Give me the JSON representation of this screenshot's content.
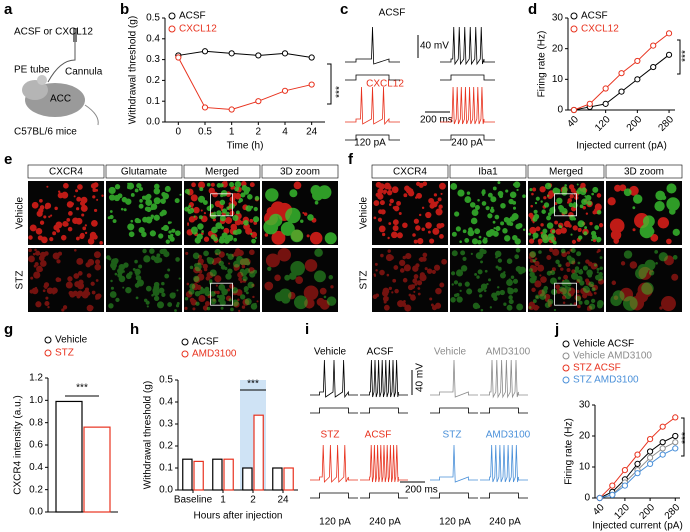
{
  "panel_labels": [
    "a",
    "b",
    "c",
    "d",
    "e",
    "f",
    "g",
    "h",
    "i",
    "j"
  ],
  "panel_a": {
    "infusion": "ACSF or CXCL12",
    "tube": "PE tube",
    "cannula": "Cannula",
    "region": "ACC",
    "mice": "C57BL/6 mice"
  },
  "panel_c": {
    "control": "ACSF",
    "treatment": "CXCL12",
    "voltage_scale": "40 mV",
    "time_scale": "200 ms",
    "currents": [
      "120 pA",
      "240 pA"
    ]
  },
  "panel_e": {
    "columns": [
      "CXCR4",
      "Glutamate",
      "Merged",
      "3D zoom"
    ],
    "rows": [
      "Vehicle",
      "STZ"
    ]
  },
  "panel_f": {
    "columns": [
      "CXCR4",
      "Iba1",
      "Merged",
      "3D zoom"
    ],
    "rows": [
      "Vehicle",
      "STZ"
    ]
  },
  "panel_i": {
    "groups": [
      [
        "Vehicle",
        "ACSF"
      ],
      [
        "Vehicle",
        "AMD3100"
      ],
      [
        "STZ",
        "ACSF"
      ],
      [
        "STZ",
        "AMD3100"
      ]
    ],
    "voltage_scale": "40 mV",
    "time_scale": "200 ms",
    "currents": [
      "120 pA",
      "240 pA",
      "120 pA",
      "240 pA"
    ]
  },
  "chart_data": [
    {
      "type": "line",
      "categories": [
        "0",
        "0.5",
        "1",
        "2",
        "4",
        "24"
      ],
      "series": [
        {
          "name": "ACSF",
          "color": "#000000",
          "values": [
            0.32,
            0.34,
            0.33,
            0.32,
            0.33,
            0.31
          ]
        },
        {
          "name": "CXCL12",
          "color": "#e8321e",
          "values": [
            0.31,
            0.07,
            0.06,
            0.1,
            0.15,
            0.18
          ]
        }
      ],
      "ylim": [
        0,
        0.5
      ],
      "yticks": [
        {
          "value": 0,
          "label": "0.0"
        },
        0.1,
        0.2,
        0.3,
        0.4,
        0.5
      ],
      "ylabel": "Withdrawal threshold (g)",
      "xlabel": "Time (h)",
      "annotation": "***"
    },
    {
      "type": "line",
      "x": [
        40,
        80,
        120,
        160,
        200,
        240,
        280
      ],
      "series": [
        {
          "name": "ACSF",
          "color": "#000000",
          "values": [
            0,
            1,
            2,
            6,
            10,
            14,
            18
          ]
        },
        {
          "name": "CXCL12",
          "color": "#e8321e",
          "values": [
            0,
            2,
            7,
            12,
            16,
            21,
            25
          ]
        }
      ],
      "xlim": [
        25,
        295
      ],
      "xticks": [
        40,
        120,
        200,
        280
      ],
      "ylim": [
        0,
        30
      ],
      "yticks": [
        0,
        10,
        20,
        30
      ],
      "ylabel": "Firing rate (Hz)",
      "xlabel": "Injected current (pA)",
      "annotation": "***"
    },
    {
      "type": "bar",
      "categories": [
        null
      ],
      "series": [
        {
          "name": "Vehicle",
          "color": "#000000",
          "values": [
            0.99
          ]
        },
        {
          "name": "STZ",
          "color": "#e8321e",
          "values": [
            0.76
          ]
        }
      ],
      "ylim": [
        0,
        1.2
      ],
      "yticks": [
        {
          "value": 0,
          "label": "0.0"
        },
        0.2,
        0.4,
        0.6,
        0.8,
        {
          "value": 1,
          "label": "1.0"
        },
        1.2
      ],
      "ylabel": "CXCR4 intensity (a.u.)",
      "annotation": "***"
    },
    {
      "type": "bar",
      "categories": [
        "Baseline",
        "1",
        "2",
        "24"
      ],
      "series": [
        {
          "name": "ACSF",
          "color": "#000000",
          "values": [
            0.14,
            0.14,
            0.1,
            0.1
          ]
        },
        {
          "name": "AMD3100",
          "color": "#e8321e",
          "values": [
            0.13,
            0.14,
            0.34,
            0.1
          ]
        }
      ],
      "ylim": [
        0,
        0.5
      ],
      "yticks": [
        {
          "value": 0,
          "label": "0.0"
        },
        0.1,
        0.2,
        0.3,
        0.4,
        0.5
      ],
      "ylabel": "Withdrawal threshold (g)",
      "xlabel": "Hours after injection",
      "annotation": "***"
    },
    {
      "type": "line",
      "x": [
        40,
        80,
        120,
        160,
        200,
        240,
        280
      ],
      "series": [
        {
          "name": "Vehicle ACSF",
          "color": "#000000",
          "values": [
            0,
            2,
            6,
            11,
            15,
            18,
            20
          ]
        },
        {
          "name": "Vehicle AMD3100",
          "color": "#8c8c8c",
          "values": [
            0,
            1,
            5,
            9,
            13,
            16,
            18
          ]
        },
        {
          "name": "STZ ACSF",
          "color": "#e8321e",
          "values": [
            0,
            4,
            9,
            14,
            19,
            23,
            26
          ]
        },
        {
          "name": "STZ AMD3100",
          "color": "#4a90d9",
          "values": [
            0,
            1,
            4,
            8,
            11,
            14,
            16
          ]
        }
      ],
      "xlim": [
        25,
        295
      ],
      "xticks": [
        40,
        120,
        200,
        280
      ],
      "ylim": [
        0,
        30
      ],
      "yticks": [
        0,
        10,
        20,
        30
      ],
      "ylabel": "Firing rate (Hz)",
      "xlabel": "Injected current (pA)",
      "annotation": "***"
    }
  ]
}
